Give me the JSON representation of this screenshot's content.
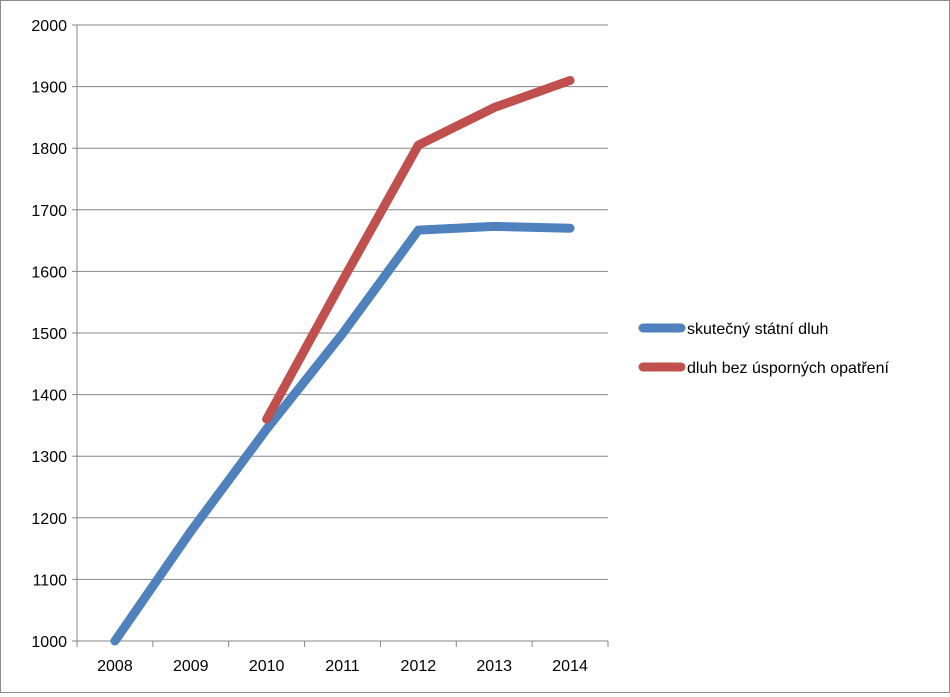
{
  "chart_data": {
    "type": "line",
    "title": "",
    "xlabel": "",
    "ylabel": "",
    "categories": [
      "2008",
      "2009",
      "2010",
      "2011",
      "2012",
      "2013",
      "2014"
    ],
    "yticks": [
      "1000",
      "1100",
      "1200",
      "1300",
      "1400",
      "1500",
      "1600",
      "1700",
      "1800",
      "1900",
      "2000"
    ],
    "ylim": [
      1000,
      2000
    ],
    "grid": true,
    "legend_position": "right",
    "series": [
      {
        "name": "skutečný státní dluh",
        "color": "#4f81bd",
        "values": [
          1000,
          1178,
          1344,
          1499,
          1667,
          1673,
          1670
        ]
      },
      {
        "name": "dluh bez úsporných opatření",
        "color": "#c0504d",
        "values": [
          null,
          null,
          1360,
          1585,
          1805,
          1866,
          1910
        ]
      }
    ]
  }
}
